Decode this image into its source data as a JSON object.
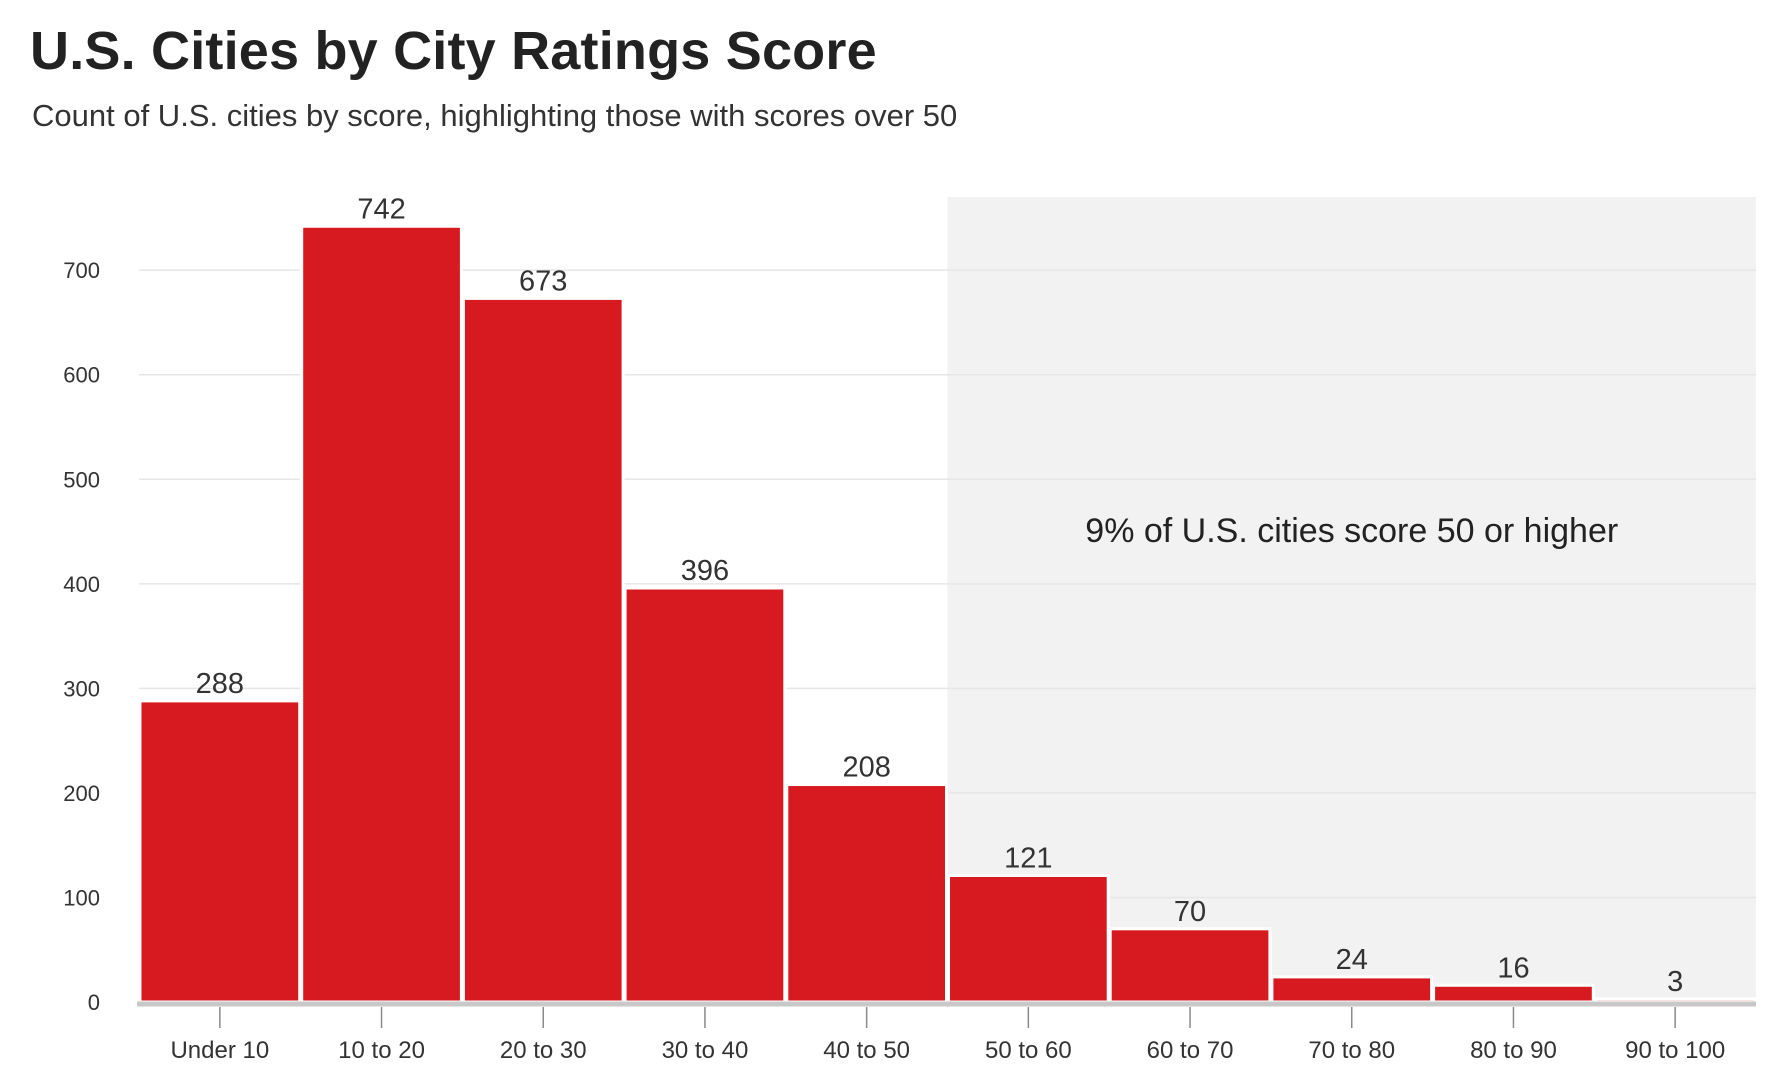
{
  "chart_data": {
    "type": "bar",
    "title": "U.S. Cities by City Ratings Score",
    "subtitle": "Count of U.S. cities by score, highlighting those with scores over 50",
    "xlabel": "",
    "ylabel": "",
    "categories": [
      "Under 10",
      "10 to 20",
      "20 to 30",
      "30 to 40",
      "40 to 50",
      "50 to 60",
      "60 to 70",
      "70 to 80",
      "80 to 90",
      "90 to 100"
    ],
    "values": [
      288,
      742,
      673,
      396,
      208,
      121,
      70,
      24,
      16,
      3
    ],
    "data_labels": [
      "288",
      "742",
      "673",
      "396",
      "208",
      "121",
      "70",
      "24",
      "16",
      "3"
    ],
    "ylim": [
      0,
      770
    ],
    "y_ticks": [
      0,
      100,
      200,
      300,
      400,
      500,
      600,
      700
    ],
    "grid": true,
    "bar_color": "#d71920",
    "highlight": {
      "from_category": "50 to 60",
      "to_category": "90 to 100",
      "color": "#f2f2f2",
      "annotation": "9% of U.S. cities score 50 or higher"
    }
  }
}
